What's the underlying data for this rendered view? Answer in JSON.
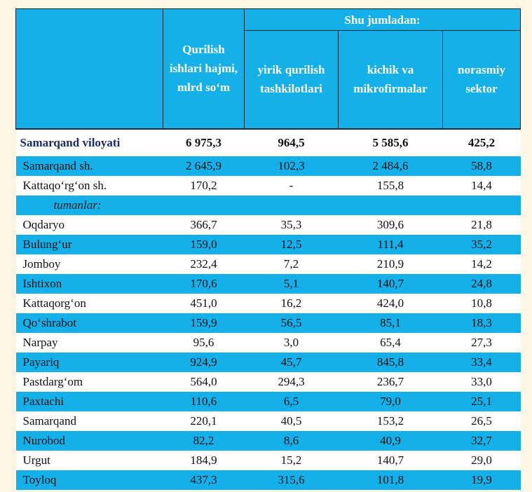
{
  "header": {
    "group_label": "Shu jumladan:",
    "col_volume": "Qurilish ishlari hajmi, mlrd so‘m",
    "col_large": "yirik qurilish tashkilotlari",
    "col_small": "kichik va mikrofirmalar",
    "col_informal": "norasmiy sektor"
  },
  "total": {
    "name": "Samarqand viloyati",
    "volume": "6 975,3",
    "large": "964,5",
    "small": "5 585,6",
    "informal": "425,2"
  },
  "cities": [
    {
      "name": "Samarqand sh.",
      "volume": "2 645,9",
      "large": "102,3",
      "small": "2 484,6",
      "informal": "58,8"
    },
    {
      "name": "Kattaqo‘rg‘on sh.",
      "volume": "170,2",
      "large": "-",
      "small": "155,8",
      "informal": "14,4"
    }
  ],
  "subheader": "tumanlar:",
  "districts": [
    {
      "name": "Oqdaryo",
      "volume": "366,7",
      "large": "35,3",
      "small": "309,6",
      "informal": "21,8"
    },
    {
      "name": "Bulung‘ur",
      "volume": "159,0",
      "large": "12,5",
      "small": "111,4",
      "informal": "35,2"
    },
    {
      "name": "Jomboy",
      "volume": "232,4",
      "large": "7,2",
      "small": "210,9",
      "informal": "14,2"
    },
    {
      "name": "Ishtixon",
      "volume": "170,6",
      "large": "5,1",
      "small": "140,7",
      "informal": "24,8"
    },
    {
      "name": "Kattaqorg‘on",
      "volume": "451,0",
      "large": "16,2",
      "small": "424,0",
      "informal": "10,8"
    },
    {
      "name": "Qo‘shrabot",
      "volume": "159,9",
      "large": "56,5",
      "small": "85,1",
      "informal": "18,3"
    },
    {
      "name": "Narpay",
      "volume": "95,6",
      "large": "3,0",
      "small": "65,4",
      "informal": "27,3"
    },
    {
      "name": "Payariq",
      "volume": "924,9",
      "large": "45,7",
      "small": "845,8",
      "informal": "33,4"
    },
    {
      "name": "Pastdarg‘om",
      "volume": "564,0",
      "large": "294,3",
      "small": "236,7",
      "informal": "33,0"
    },
    {
      "name": "Paxtachi",
      "volume": "110,6",
      "large": "6,5",
      "small": "79,0",
      "informal": "25,1"
    },
    {
      "name": "Samarqand",
      "volume": "220,1",
      "large": "40,5",
      "small": "153,2",
      "informal": "26,5"
    },
    {
      "name": "Nurobod",
      "volume": "82,2",
      "large": "8,6",
      "small": "40,9",
      "informal": "32,7"
    },
    {
      "name": "Urgut",
      "volume": "184,9",
      "large": "15,2",
      "small": "140,7",
      "informal": "29,0"
    },
    {
      "name": "Toyloq",
      "volume": "437,3",
      "large": "315,6",
      "small": "101,8",
      "informal": "19,9"
    }
  ]
}
